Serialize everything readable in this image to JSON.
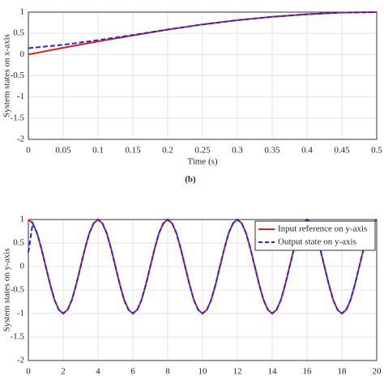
{
  "chart_data": [
    {
      "type": "line",
      "caption": "(b)",
      "xlabel": "Time (s)",
      "ylabel": "System states on x-axis",
      "x": [
        0,
        0.05,
        0.1,
        0.15,
        0.2,
        0.25,
        0.3,
        0.35,
        0.4,
        0.45,
        0.5
      ],
      "series": [
        {
          "color": "#e41a1c",
          "dash": false,
          "values": [
            0,
            0.16,
            0.31,
            0.45,
            0.59,
            0.71,
            0.81,
            0.89,
            0.95,
            0.99,
            1
          ]
        },
        {
          "color": "#1f2bd6",
          "dash": true,
          "values": [
            0.15,
            0.23,
            0.34,
            0.46,
            0.59,
            0.71,
            0.81,
            0.89,
            0.95,
            0.99,
            1
          ]
        }
      ],
      "xlim": [
        0,
        0.5
      ],
      "xticks": [
        0,
        0.05,
        0.1,
        0.15,
        0.2,
        0.25,
        0.3,
        0.35,
        0.4,
        0.45,
        0.5
      ],
      "ylim": [
        -2,
        1
      ],
      "yticks": [
        1,
        0.5,
        0,
        -0.5,
        -1,
        -1.5,
        -2
      ],
      "grid": true
    },
    {
      "type": "line",
      "ylabel": "System states on y-axis",
      "legend": "top-right",
      "x": [
        0,
        0.25,
        0.5,
        0.75,
        1,
        1.25,
        1.5,
        1.75,
        2,
        2.25,
        2.5,
        2.75,
        3,
        3.25,
        3.5,
        3.75,
        4,
        4.25,
        4.5,
        4.75,
        5,
        5.25,
        5.5,
        5.75,
        6,
        6.25,
        6.5,
        6.75,
        7,
        7.25,
        7.5,
        7.75,
        8,
        8.25,
        8.5,
        8.75,
        9,
        9.25,
        9.5,
        9.75,
        10,
        10.25,
        10.5,
        10.75,
        11,
        11.25,
        11.5,
        11.75,
        12,
        12.25,
        12.5,
        12.75,
        13,
        13.25,
        13.5,
        13.75,
        14,
        14.25,
        14.5,
        14.75,
        15,
        15.25,
        15.5,
        15.75,
        16,
        16.25,
        16.5,
        16.75,
        17,
        17.25,
        17.5,
        17.75,
        18,
        18.25,
        18.5,
        18.75,
        19,
        19.25,
        19.5,
        19.75,
        20
      ],
      "series": [
        {
          "name": "Input reference on y-axis",
          "color": "#e41a1c",
          "dash": false,
          "values": [
            1,
            0.92,
            0.71,
            0.38,
            0,
            -0.38,
            -0.71,
            -0.92,
            -1,
            -0.92,
            -0.71,
            -0.38,
            0,
            0.38,
            0.71,
            0.92,
            1,
            0.92,
            0.71,
            0.38,
            0,
            -0.38,
            -0.71,
            -0.92,
            -1,
            -0.92,
            -0.71,
            -0.38,
            0,
            0.38,
            0.71,
            0.92,
            1,
            0.92,
            0.71,
            0.38,
            0,
            -0.38,
            -0.71,
            -0.92,
            -1,
            -0.92,
            -0.71,
            -0.38,
            0,
            0.38,
            0.71,
            0.92,
            1,
            0.92,
            0.71,
            0.38,
            0,
            -0.38,
            -0.71,
            -0.92,
            -1,
            -0.92,
            -0.71,
            -0.38,
            0,
            0.38,
            0.71,
            0.92,
            1,
            0.92,
            0.71,
            0.38,
            0,
            -0.38,
            -0.71,
            -0.92,
            -1,
            -0.92,
            -0.71,
            -0.38,
            0,
            0.38,
            0.71,
            0.92,
            1
          ]
        },
        {
          "name": "Output state on y-axis",
          "color": "#1f2bd6",
          "dash": true,
          "values": [
            0.3,
            0.92,
            0.71,
            0.38,
            0,
            -0.38,
            -0.71,
            -0.92,
            -1,
            -0.92,
            -0.71,
            -0.38,
            0,
            0.38,
            0.71,
            0.92,
            1,
            0.92,
            0.71,
            0.38,
            0,
            -0.38,
            -0.71,
            -0.92,
            -1,
            -0.92,
            -0.71,
            -0.38,
            0,
            0.38,
            0.71,
            0.92,
            1,
            0.92,
            0.71,
            0.38,
            0,
            -0.38,
            -0.71,
            -0.92,
            -1,
            -0.92,
            -0.71,
            -0.38,
            0,
            0.38,
            0.71,
            0.92,
            1,
            0.92,
            0.71,
            0.38,
            0,
            -0.38,
            -0.71,
            -0.92,
            -1,
            -0.92,
            -0.71,
            -0.38,
            0,
            0.38,
            0.71,
            0.92,
            1,
            0.92,
            0.71,
            0.38,
            0,
            -0.38,
            -0.71,
            -0.92,
            -1,
            -0.92,
            -0.71,
            -0.38,
            0,
            0.38,
            0.71,
            0.92,
            1
          ]
        }
      ],
      "xlim": [
        0,
        20
      ],
      "xticks": [
        0,
        2,
        4,
        6,
        8,
        10,
        12,
        14,
        16,
        18,
        20
      ],
      "ylim": [
        -2,
        1
      ],
      "yticks": [
        1,
        0.5,
        0,
        -0.5,
        -1,
        -1.5,
        -2
      ],
      "grid": true
    }
  ]
}
